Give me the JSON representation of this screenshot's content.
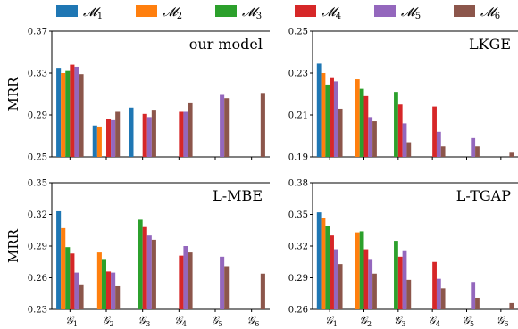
{
  "legend": [
    {
      "symbol": "𝓜",
      "sub": "1",
      "color": "#1f77b4"
    },
    {
      "symbol": "𝓜",
      "sub": "2",
      "color": "#ff7f0e"
    },
    {
      "symbol": "𝓜",
      "sub": "3",
      "color": "#2ca02c"
    },
    {
      "symbol": "𝓜",
      "sub": "4",
      "color": "#d62728"
    },
    {
      "symbol": "𝓜",
      "sub": "5",
      "color": "#9467bd"
    },
    {
      "symbol": "𝓜",
      "sub": "6",
      "color": "#8c564b"
    }
  ],
  "chart_data": [
    {
      "type": "bar",
      "title": "our model",
      "ylabel": "MRR",
      "ylim": [
        0.25,
        0.37
      ],
      "yticks": [
        "0.25",
        "0.29",
        "0.33",
        "0.37"
      ],
      "categories": [
        "1",
        "2",
        "3",
        "4",
        "5",
        "6"
      ],
      "series": [
        {
          "values": [
            0.335,
            0.28,
            0.297,
            null,
            null,
            null
          ]
        },
        {
          "values": [
            0.33,
            0.279,
            null,
            null,
            null,
            null
          ]
        },
        {
          "values": [
            0.332,
            null,
            null,
            null,
            null,
            null
          ]
        },
        {
          "values": [
            0.338,
            0.286,
            0.291,
            0.293,
            null,
            null
          ]
        },
        {
          "values": [
            0.336,
            0.285,
            0.288,
            0.293,
            0.31,
            null
          ]
        },
        {
          "values": [
            0.329,
            0.293,
            0.295,
            0.302,
            0.306,
            0.311
          ]
        }
      ]
    },
    {
      "type": "bar",
      "title": "LKGE",
      "ylabel": "",
      "ylim": [
        0.19,
        0.25
      ],
      "yticks": [
        "0.19",
        "0.21",
        "0.23",
        "0.25"
      ],
      "categories": [
        "1",
        "2",
        "3",
        "4",
        "5",
        "6"
      ],
      "series": [
        {
          "values": [
            0.2345,
            null,
            null,
            null,
            null,
            null
          ]
        },
        {
          "values": [
            0.23,
            0.227,
            null,
            null,
            null,
            null
          ]
        },
        {
          "values": [
            0.2245,
            0.2225,
            0.221,
            null,
            null,
            null
          ]
        },
        {
          "values": [
            0.228,
            0.219,
            0.215,
            0.214,
            null,
            null
          ]
        },
        {
          "values": [
            0.226,
            0.209,
            0.206,
            0.202,
            0.199,
            null
          ]
        },
        {
          "values": [
            0.213,
            0.207,
            0.197,
            0.195,
            0.195,
            0.192
          ]
        }
      ]
    },
    {
      "type": "bar",
      "title": "L-MBE",
      "ylabel": "MRR",
      "ylim": [
        0.23,
        0.35
      ],
      "yticks": [
        "0.23",
        "0.26",
        "0.29",
        "0.32",
        "0.35"
      ],
      "categories": [
        "1",
        "2",
        "3",
        "4",
        "5",
        "6"
      ],
      "series": [
        {
          "values": [
            0.323,
            null,
            null,
            null,
            null,
            null
          ]
        },
        {
          "values": [
            0.307,
            0.284,
            null,
            null,
            null,
            null
          ]
        },
        {
          "values": [
            0.289,
            0.277,
            0.315,
            null,
            null,
            null
          ]
        },
        {
          "values": [
            0.283,
            0.266,
            0.308,
            0.281,
            null,
            null
          ]
        },
        {
          "values": [
            0.265,
            0.265,
            0.3,
            0.29,
            0.28,
            null
          ]
        },
        {
          "values": [
            0.253,
            0.252,
            0.296,
            0.284,
            0.271,
            0.264
          ]
        }
      ]
    },
    {
      "type": "bar",
      "title": "L-TGAP",
      "ylabel": "",
      "ylim": [
        0.26,
        0.38
      ],
      "yticks": [
        "0.26",
        "0.29",
        "0.32",
        "0.35",
        "0.38"
      ],
      "categories": [
        "1",
        "2",
        "3",
        "4",
        "5",
        "6"
      ],
      "series": [
        {
          "values": [
            0.352,
            null,
            null,
            null,
            null,
            null
          ]
        },
        {
          "values": [
            0.347,
            0.333,
            null,
            null,
            null,
            null
          ]
        },
        {
          "values": [
            0.339,
            0.334,
            0.325,
            null,
            null,
            null
          ]
        },
        {
          "values": [
            0.33,
            0.317,
            0.31,
            0.305,
            null,
            null
          ]
        },
        {
          "values": [
            0.317,
            0.307,
            0.316,
            0.289,
            0.286,
            null
          ]
        },
        {
          "values": [
            0.303,
            0.294,
            0.288,
            0.28,
            0.271,
            0.266
          ]
        }
      ]
    }
  ],
  "xtick_symbol": "𝒢"
}
